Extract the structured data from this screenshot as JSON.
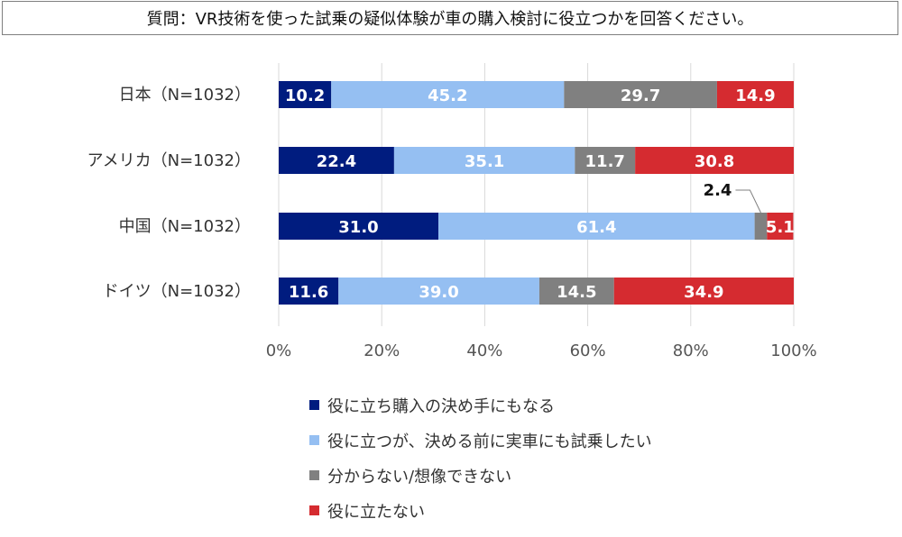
{
  "question": "質問：VR技術を使った試乗の疑似体験が車の購入検討に役立つかを回答ください。",
  "chart_data": {
    "type": "bar",
    "orientation": "horizontal",
    "stacked": true,
    "categories": [
      "日本（N=1032）",
      "アメリカ（N=1032）",
      "中国（N=1032）",
      "ドイツ（N=1032）"
    ],
    "series": [
      {
        "name": "役に立ち購入の決め手にもなる",
        "color": "#001C7F",
        "values": [
          10.2,
          22.4,
          31.0,
          11.6
        ],
        "labels": [
          "10.2",
          "22.4",
          "31.0",
          "11.6"
        ]
      },
      {
        "name": "役に立つが、決める前に実車にも試乗したい",
        "color": "#95BFF2",
        "values": [
          45.2,
          35.1,
          61.4,
          39.0
        ],
        "labels": [
          "45.2",
          "35.1",
          "61.4",
          "39.0"
        ]
      },
      {
        "name": "分からない/想像できない",
        "color": "#808080",
        "values": [
          29.7,
          11.7,
          2.4,
          14.5
        ],
        "labels": [
          "29.7",
          "11.7",
          "2.4",
          "14.5"
        ]
      },
      {
        "name": "役に立たない",
        "color": "#D52B30",
        "values": [
          14.9,
          30.8,
          5.1,
          34.9
        ],
        "labels": [
          "14.9",
          "30.8",
          "5.1",
          "34.9"
        ]
      }
    ],
    "xlim": [
      0,
      100
    ],
    "xticks": [
      "0%",
      "20%",
      "40%",
      "60%",
      "80%",
      "100%"
    ],
    "grid": true,
    "legend": "bottom"
  }
}
